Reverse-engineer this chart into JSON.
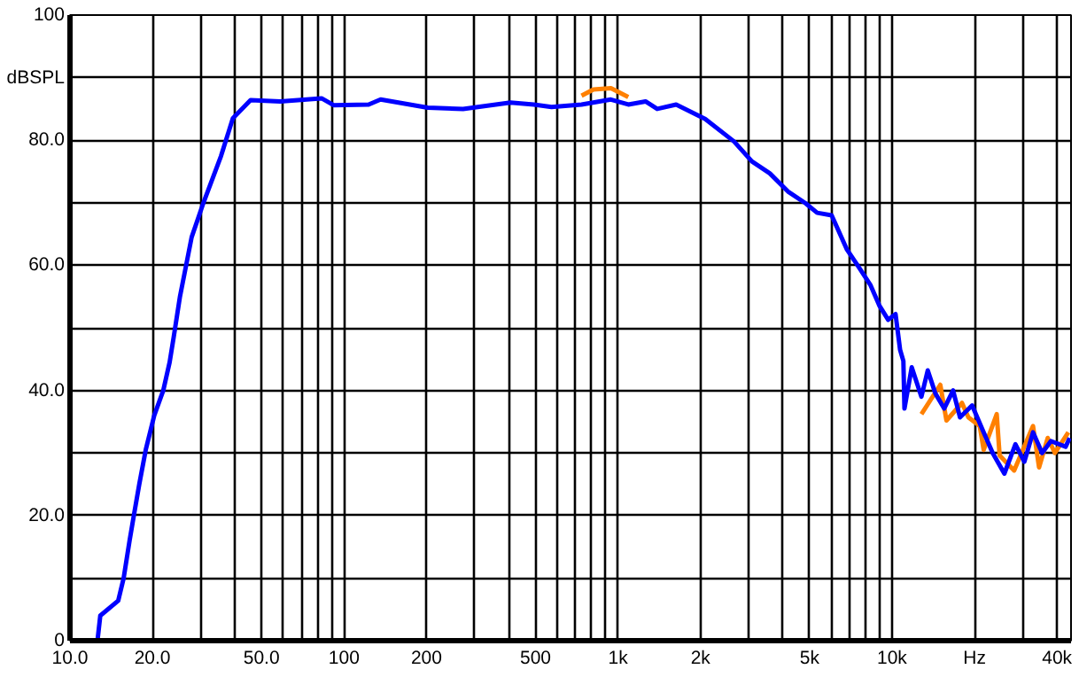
{
  "chart_data": {
    "type": "line",
    "log": "x",
    "grid": true,
    "line_style": "solid",
    "marker": "none",
    "xlim": [
      10,
      45000
    ],
    "ylim": [
      0,
      100
    ],
    "xticks": [
      {
        "value": 10,
        "label": "10.0"
      },
      {
        "value": 20,
        "label": "20.0"
      },
      {
        "value": 30,
        "label": null
      },
      {
        "value": 40,
        "label": null
      },
      {
        "value": 50,
        "label": "50.0"
      },
      {
        "value": 60,
        "label": null
      },
      {
        "value": 70,
        "label": null
      },
      {
        "value": 80,
        "label": null
      },
      {
        "value": 90,
        "label": null
      },
      100,
      200,
      {
        "value": 300,
        "label": null
      },
      {
        "value": 400,
        "label": null
      },
      500,
      {
        "value": 600,
        "label": null
      },
      {
        "value": 700,
        "label": null
      },
      {
        "value": 800,
        "label": null
      },
      {
        "value": 900,
        "label": null
      },
      {
        "value": 1000,
        "label": "1k"
      },
      {
        "value": 2000,
        "label": "2k"
      },
      {
        "value": 3000,
        "label": null
      },
      {
        "value": 4000,
        "label": null
      },
      {
        "value": 5000,
        "label": "5k"
      },
      {
        "value": 6000,
        "label": null
      },
      {
        "value": 7000,
        "label": null
      },
      {
        "value": 8000,
        "label": null
      },
      {
        "value": 9000,
        "label": null
      },
      {
        "value": 10000,
        "label": "10k"
      },
      {
        "value": 20000,
        "label": "Hz"
      },
      {
        "value": 30000,
        "label": null
      },
      {
        "value": 40000,
        "label": "40k"
      }
    ],
    "yticks": [
      0,
      {
        "value": 10,
        "label": null
      },
      {
        "value": 20,
        "label": "20.0"
      },
      {
        "value": 30,
        "label": null
      },
      {
        "value": 40,
        "label": "40.0"
      },
      {
        "value": 50,
        "label": null
      },
      {
        "value": 60,
        "label": "60.0"
      },
      {
        "value": 70,
        "label": null
      },
      {
        "value": 80,
        "label": "80.0"
      },
      {
        "value": 90,
        "label": "dBSPL"
      },
      100
    ],
    "series": [
      {
        "color": "#ff8000",
        "x": [
          736,
          813,
          942,
          1090,
          5000,
          12800,
          15000,
          15800,
          18000,
          19000,
          20900,
          21600,
          24100,
          24700,
          27900,
          32700,
          34400,
          37000,
          39300,
          44000
        ],
        "values": [
          87.1,
          88.1,
          88.3,
          86.9,
          null,
          36.2,
          40.9,
          35.2,
          38,
          35.7,
          34.3,
          30.5,
          36.2,
          29.6,
          27.2,
          34.3,
          27.7,
          32.4,
          30,
          33.3
        ]
      },
      {
        "color": "#0000ff",
        "x": [
          12.6,
          12.9,
          15.0,
          15.7,
          16.5,
          17.1,
          17.9,
          18.9,
          20.3,
          21.9,
          23.1,
          23.9,
          25.2,
          27.8,
          30.7,
          35.6,
          39.3,
          45.6,
          58.5,
          82.8,
          91.6,
          123,
          136,
          202,
          272,
          405,
          493,
          572,
          736,
          942,
          1090,
          1260,
          1390,
          1630,
          2080,
          2650,
          3080,
          3580,
          4170,
          4840,
          5330,
          6020,
          6830,
          7540,
          8330,
          8980,
          9680,
          10300,
          10700,
          11000,
          11100,
          11800,
          12800,
          13500,
          14400,
          15500,
          16700,
          17700,
          19600,
          21600,
          23300,
          25700,
          28200,
          30400,
          32700,
          35300,
          38000,
          43000,
          44500
        ],
        "values": [
          0,
          4,
          6.4,
          10,
          16,
          20,
          25,
          30.5,
          36,
          40,
          44.5,
          48.5,
          55,
          64.5,
          70,
          77.5,
          83.5,
          86.4,
          86.2,
          86.7,
          85.6,
          85.7,
          86.5,
          85.2,
          85,
          86,
          85.7,
          85.3,
          85.7,
          86.5,
          85.7,
          86.2,
          85,
          85.7,
          83.4,
          79.8,
          76.6,
          74.7,
          71.8,
          69.9,
          68.4,
          68,
          62.6,
          59.8,
          56.9,
          53.6,
          51.3,
          52.2,
          46.5,
          44.7,
          37.1,
          43.7,
          39,
          43.2,
          39.5,
          37.1,
          40,
          35.7,
          37.6,
          33.3,
          30,
          26.7,
          31.4,
          28.6,
          33.3,
          30,
          31.9,
          31,
          32.4
        ]
      }
    ]
  }
}
